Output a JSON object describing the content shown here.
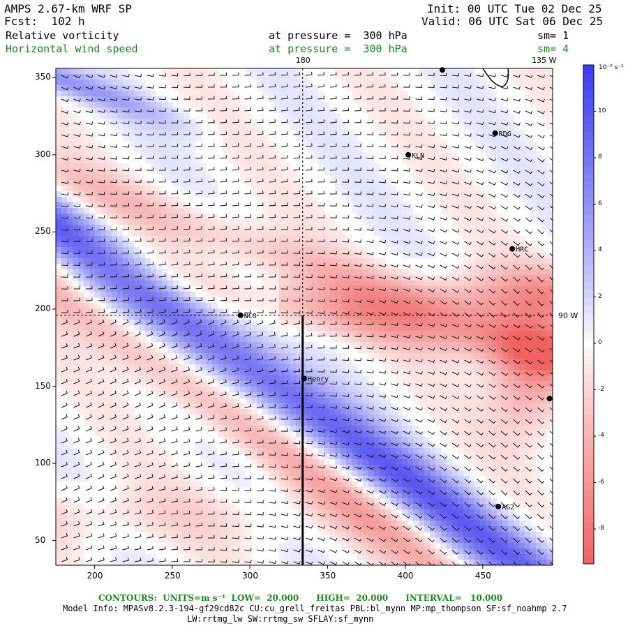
{
  "header": {
    "model": "AMPS 2.67-km WRF SP",
    "forecast": "Fcst:  102 h",
    "init": "Init: 00 UTC Tue 02 Dec 25",
    "valid": "Valid: 06 UTC Sat 06 Dec 25",
    "field1_name": "Relative vorticity",
    "field1_level": "at pressure =  300 hPa",
    "field1_smooth": "sm= 1",
    "field2_name": "Horizontal wind speed",
    "field2_level": "at pressure =  300 hPa",
    "field2_smooth": "sm= 4"
  },
  "map_labels": {
    "lon_180": "180",
    "lon_135w": "135 W",
    "lon_90w": "90 W"
  },
  "stations": [
    {
      "name": "RDG",
      "x": 458,
      "y": 314
    },
    {
      "name": "KLN",
      "x": 402,
      "y": 300
    },
    {
      "name": "HRC",
      "x": 469,
      "y": 239
    },
    {
      "name": "NCO",
      "x": 294,
      "y": 196
    },
    {
      "name": "Henry",
      "x": 335,
      "y": 155
    },
    {
      "name": "AG2",
      "x": 460,
      "y": 72
    },
    {
      "name": "",
      "x": 424,
      "y": 355
    },
    {
      "name": "",
      "x": 493,
      "y": 142
    }
  ],
  "axes": {
    "x_ticks": [
      "200",
      "250",
      "300",
      "350",
      "400",
      "450"
    ],
    "y_ticks": [
      "350",
      "300",
      "250",
      "200",
      "150",
      "100",
      "50"
    ],
    "x_range": [
      175,
      495
    ],
    "y_range": [
      34,
      356
    ],
    "cross_section_x": 334,
    "cross_section_y_range": [
      34,
      196
    ],
    "dashed_lon": 334,
    "dashed_lat": 196
  },
  "colorbar": {
    "units": "10⁻⁵ s⁻¹",
    "ticks": [
      "10",
      "8",
      "6",
      "4",
      "2",
      "0",
      "-2",
      "-4",
      "-6",
      "-8"
    ],
    "tick_values": [
      10,
      8,
      6,
      4,
      2,
      0,
      -2,
      -4,
      -6,
      -8
    ],
    "range": [
      -9.5,
      12
    ],
    "max_color": "#3b3bf0",
    "min_color": "#f06262",
    "mid_color": "#ffffff"
  },
  "footer": {
    "contours": "CONTOURS:  UNITS=m s⁻¹  LOW=  20.000      HIGH=  20.000      INTERVAL=   10.000",
    "model_info": "Model Info: MPASv8.2.3-194-gf29cd82c CU:cu_grell_freitas PBL:bl_mynn MP:mp_thompson SF:sf_noahmp 2.7",
    "model_info2": "LW:rrtmg_lw SW:rrtmg_sw SFLAY:sf_mynn"
  }
}
